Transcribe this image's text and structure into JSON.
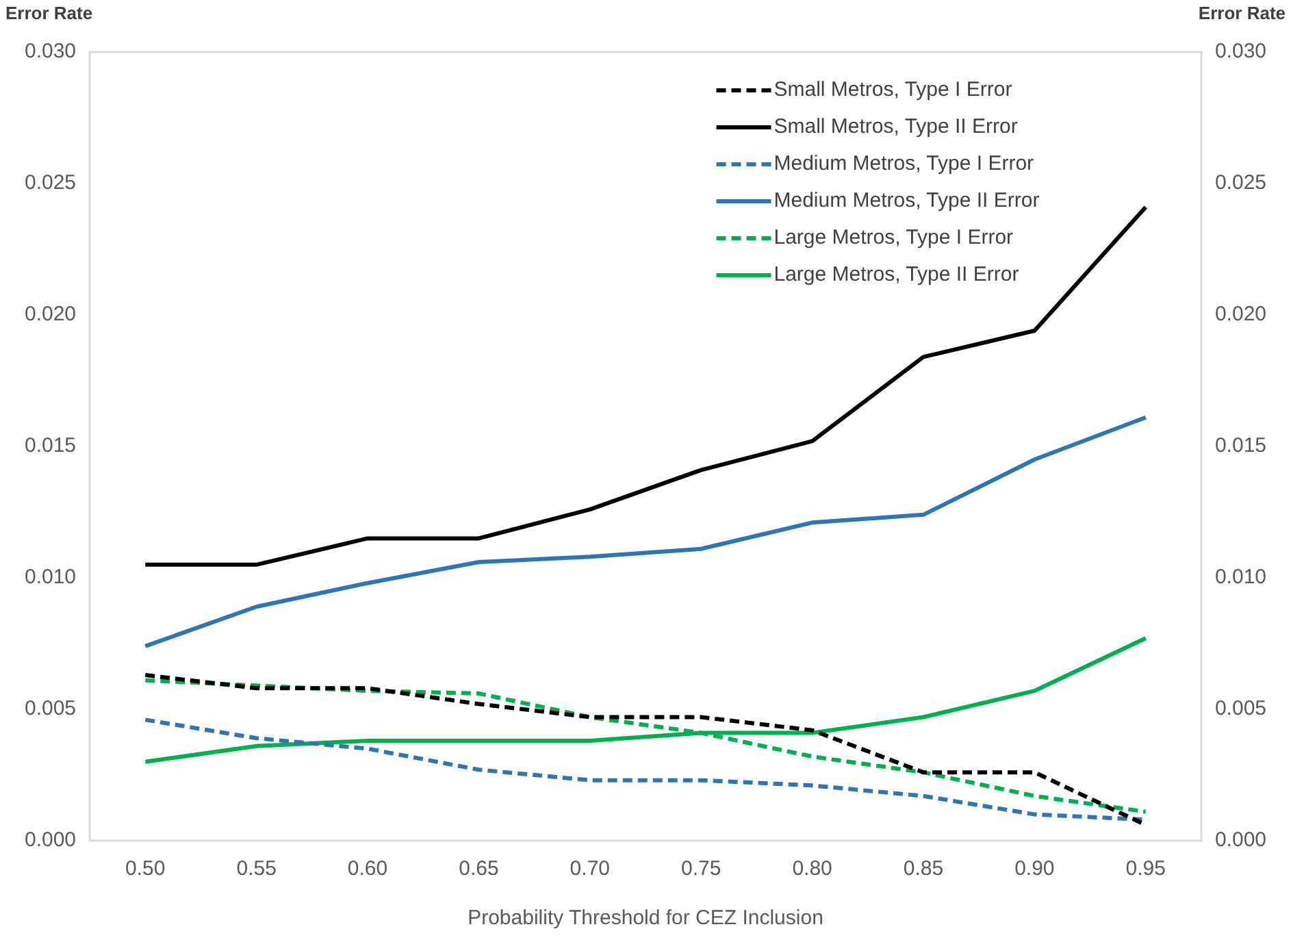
{
  "chart_data": {
    "type": "line",
    "xlabel": "Probability Threshold for CEZ Inclusion",
    "ylabel": "Error Rate",
    "y2label": "Error Rate",
    "categories": [
      "0.50",
      "0.55",
      "0.60",
      "0.65",
      "0.70",
      "0.75",
      "0.80",
      "0.85",
      "0.90",
      "0.95"
    ],
    "ylim": [
      0,
      0.03
    ],
    "yticks": [
      {
        "value": 0,
        "label": "0.000"
      },
      {
        "value": 0.005,
        "label": "0.005"
      },
      {
        "value": 0.01,
        "label": "0.010"
      },
      {
        "value": 0.015,
        "label": "0.015"
      },
      {
        "value": 0.02,
        "label": "0.020"
      },
      {
        "value": 0.025,
        "label": "0.025"
      },
      {
        "value": 0.03,
        "label": "0.030"
      }
    ],
    "y2lim": [
      0,
      0.03
    ],
    "y2ticks": [
      {
        "value": 0,
        "label": "0.000"
      },
      {
        "value": 0.005,
        "label": "0.005"
      },
      {
        "value": 0.01,
        "label": "0.010"
      },
      {
        "value": 0.015,
        "label": "0.015"
      },
      {
        "value": 0.02,
        "label": "0.020"
      },
      {
        "value": 0.025,
        "label": "0.025"
      },
      {
        "value": 0.03,
        "label": "0.030"
      }
    ],
    "grid": false,
    "legend": "top right",
    "marker": "none",
    "series": [
      {
        "name": "Small Metros, Type I Error",
        "color": "#000000",
        "line_style": "dashed",
        "values": [
          0.0063,
          0.0058,
          0.0058,
          0.0052,
          0.0047,
          0.0047,
          0.0042,
          0.0026,
          0.0026,
          0.0006
        ]
      },
      {
        "name": "Small Metros, Type II Error",
        "color": "#000000",
        "line_style": "solid",
        "values": [
          0.0105,
          0.0105,
          0.0115,
          0.0115,
          0.0126,
          0.0141,
          0.0152,
          0.0184,
          0.0194,
          0.0241
        ]
      },
      {
        "name": "Medium Metros, Type I Error",
        "color": "#2e75b6",
        "line_style": "dashed",
        "values": [
          0.0046,
          0.0039,
          0.0035,
          0.0027,
          0.0023,
          0.0023,
          0.0021,
          0.0017,
          0.001,
          0.0008
        ]
      },
      {
        "name": "Medium Metros, Type II Error",
        "color": "#2e75b6",
        "line_style": "solid",
        "values": [
          0.0074,
          0.0089,
          0.0098,
          0.0106,
          0.0108,
          0.0111,
          0.0121,
          0.0124,
          0.0145,
          0.0161
        ]
      },
      {
        "name": "Large Metros, Type I Error",
        "color": "#00b050",
        "line_style": "dashed",
        "values": [
          0.0061,
          0.0059,
          0.0057,
          0.0056,
          0.0047,
          0.0041,
          0.0032,
          0.0026,
          0.0017,
          0.0011
        ]
      },
      {
        "name": "Large Metros, Type II Error",
        "color": "#00b050",
        "line_style": "solid",
        "values": [
          0.003,
          0.0036,
          0.0038,
          0.0038,
          0.0038,
          0.0041,
          0.0041,
          0.0047,
          0.0057,
          0.0077
        ]
      }
    ]
  }
}
